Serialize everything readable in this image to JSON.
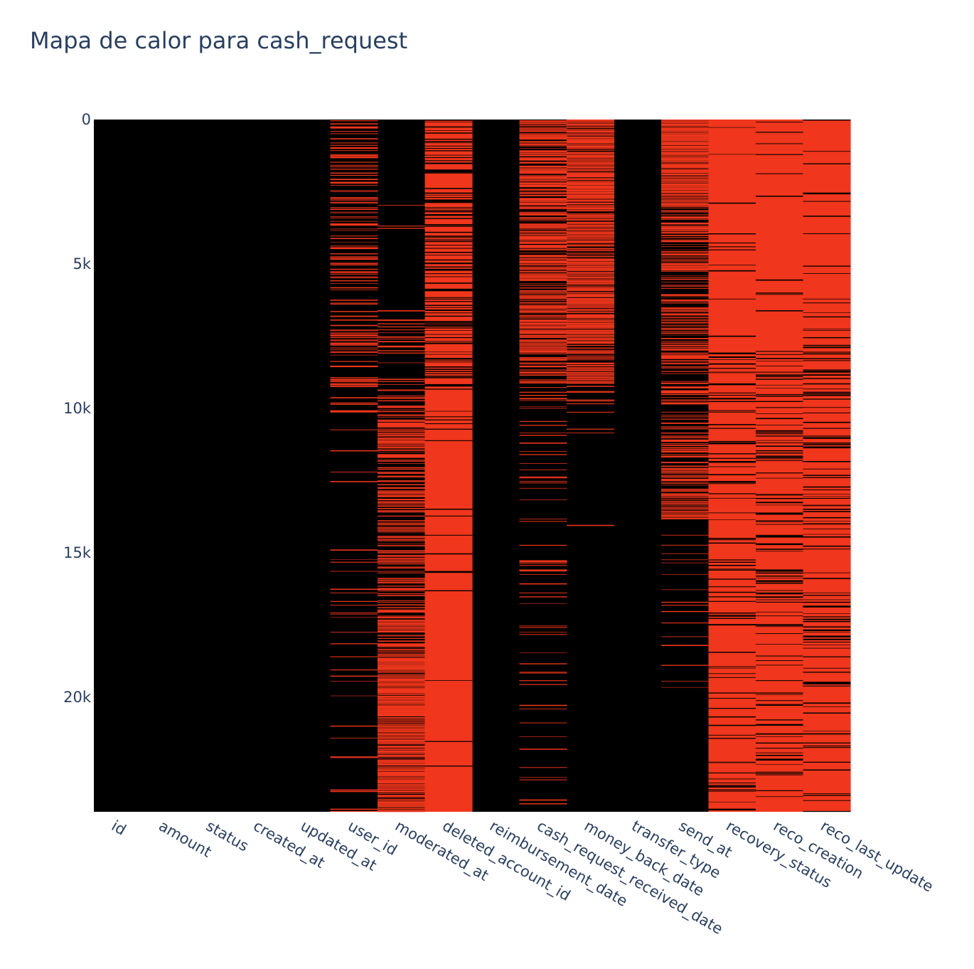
{
  "chart_data": {
    "type": "heatmap",
    "title": "Mapa de calor para cash_request",
    "xlabel": "",
    "ylabel": "",
    "x_categories": [
      "id",
      "amount",
      "status",
      "created_at",
      "updated_at",
      "user_id",
      "moderated_at",
      "deleted_account_id",
      "reimbursement_date",
      "cash_request_received_date",
      "money_back_date",
      "transfer_type",
      "send_at",
      "recovery_status",
      "reco_creation",
      "reco_last_update"
    ],
    "y_range": [
      0,
      23970
    ],
    "y_reversed": true,
    "y_ticks": [
      {
        "value": 0,
        "label": "0"
      },
      {
        "value": 5000,
        "label": "5k"
      },
      {
        "value": 10000,
        "label": "10k"
      },
      {
        "value": 15000,
        "label": "15k"
      },
      {
        "value": 20000,
        "label": "20k"
      }
    ],
    "value_meaning": "1 = missing value (red), 0 = present (black)",
    "colors": {
      "present": "#000000",
      "missing": "#f0361c"
    },
    "columns": [
      {
        "name": "id",
        "base": 0,
        "segments": []
      },
      {
        "name": "amount",
        "base": 0,
        "segments": []
      },
      {
        "name": "status",
        "base": 0,
        "segments": []
      },
      {
        "name": "created_at",
        "base": 0,
        "segments": []
      },
      {
        "name": "updated_at",
        "base": 0,
        "segments": []
      },
      {
        "name": "user_id",
        "base": 0,
        "segments": [
          {
            "from": 0,
            "to": 9300,
            "density": 0.35
          },
          {
            "from": 9300,
            "to": 23970,
            "density": 0.05
          }
        ]
      },
      {
        "name": "moderated_at",
        "base": 0,
        "segments": [
          {
            "from": 0,
            "to": 6500,
            "density": 0.01
          },
          {
            "from": 6500,
            "to": 9500,
            "density": 0.2
          },
          {
            "from": 9500,
            "to": 14000,
            "density": 0.5
          },
          {
            "from": 14000,
            "to": 18500,
            "density": 0.55
          },
          {
            "from": 18500,
            "to": 23970,
            "density": 0.9
          }
        ]
      },
      {
        "name": "deleted_account_id",
        "base": 1,
        "segments": [
          {
            "from": 0,
            "to": 9400,
            "density": 0.7
          },
          {
            "from": 9400,
            "to": 23970,
            "density": 0.97
          }
        ]
      },
      {
        "name": "reimbursement_date",
        "base": 0,
        "segments": []
      },
      {
        "name": "cash_request_received_date",
        "base": 0,
        "segments": [
          {
            "from": 0,
            "to": 8000,
            "density": 0.75
          },
          {
            "from": 8000,
            "to": 10000,
            "density": 0.5
          },
          {
            "from": 10000,
            "to": 23970,
            "density": 0.08
          }
        ]
      },
      {
        "name": "money_back_date",
        "base": 0,
        "segments": [
          {
            "from": 0,
            "to": 7500,
            "density": 0.9
          },
          {
            "from": 7500,
            "to": 9300,
            "density": 0.7
          },
          {
            "from": 9300,
            "to": 11000,
            "density": 0.15
          },
          {
            "from": 11000,
            "to": 23970,
            "density": 0.003
          }
        ]
      },
      {
        "name": "transfer_type",
        "base": 0,
        "segments": []
      },
      {
        "name": "send_at",
        "base": 0,
        "segments": [
          {
            "from": 0,
            "to": 3000,
            "density": 0.97
          },
          {
            "from": 3000,
            "to": 8000,
            "density": 0.5
          },
          {
            "from": 8000,
            "to": 14000,
            "density": 0.4
          },
          {
            "from": 14000,
            "to": 20000,
            "density": 0.05
          },
          {
            "from": 20000,
            "to": 23970,
            "density": 0.0
          }
        ]
      },
      {
        "name": "recovery_status",
        "base": 1,
        "segments": [
          {
            "from": 0,
            "to": 8000,
            "density": 0.96
          },
          {
            "from": 8000,
            "to": 14000,
            "density": 0.8
          },
          {
            "from": 14000,
            "to": 23970,
            "density": 0.85
          }
        ]
      },
      {
        "name": "reco_creation",
        "base": 1,
        "segments": [
          {
            "from": 0,
            "to": 8000,
            "density": 0.96
          },
          {
            "from": 8000,
            "to": 14000,
            "density": 0.8
          },
          {
            "from": 14000,
            "to": 23970,
            "density": 0.85
          }
        ]
      },
      {
        "name": "reco_last_update",
        "base": 1,
        "segments": [
          {
            "from": 0,
            "to": 8000,
            "density": 0.96
          },
          {
            "from": 8000,
            "to": 14000,
            "density": 0.8
          },
          {
            "from": 14000,
            "to": 23970,
            "density": 0.85
          }
        ]
      }
    ]
  }
}
